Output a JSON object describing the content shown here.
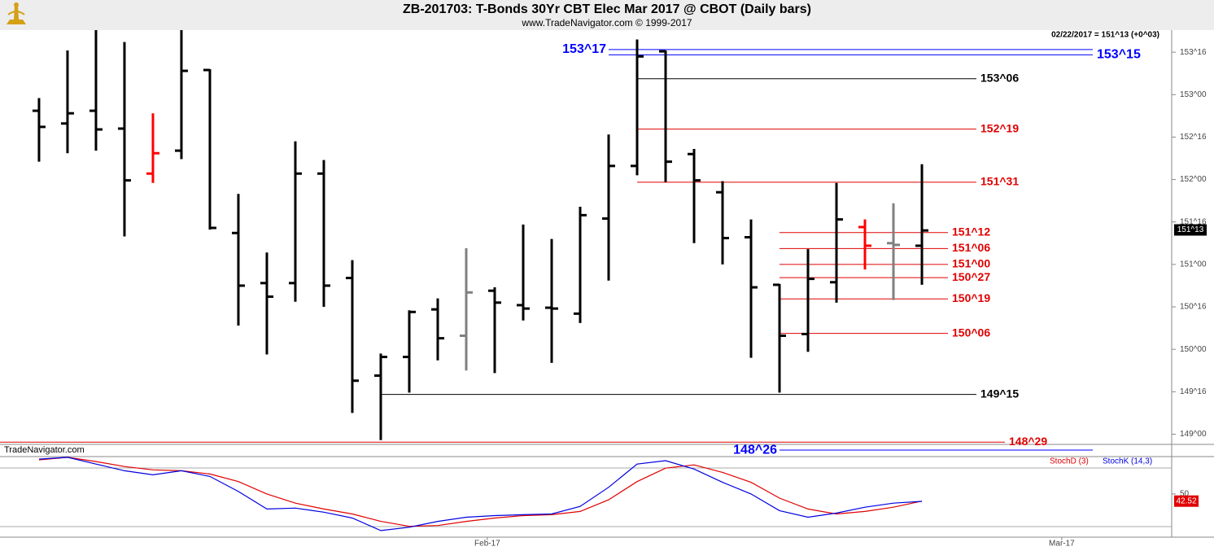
{
  "chart_data": [
    {
      "type": "ohlc",
      "title": "ZB-201703:  T-Bonds 30Yr CBT Elec Mar 2017 @ CBOT  (Daily bars)",
      "subtitle": "www.TradeNavigator.com © 1999-2017",
      "info": "02/22/2017 = 151^13 (+0^03)",
      "watermark": "TradeNavigator.com",
      "categories": [
        null,
        null,
        null,
        null,
        null,
        null,
        null,
        null,
        null,
        null,
        null,
        null,
        null,
        null,
        null,
        null,
        null,
        null,
        null,
        null,
        null,
        null,
        null,
        null,
        null,
        null,
        null,
        null,
        null,
        null,
        null,
        null
      ],
      "xlim": [
        -1.37,
        39.77
      ],
      "ylim": [
        148.88,
        153.76
      ],
      "yticks": [
        {
          "value": 153.5,
          "label": "153^16"
        },
        {
          "value": 153,
          "label": "153^00"
        },
        {
          "value": 152.5,
          "label": "152^16"
        },
        {
          "value": 152,
          "label": "152^00"
        },
        {
          "value": 151.5,
          "label": "151^16"
        },
        {
          "value": 151,
          "label": "151^00"
        },
        {
          "value": 150.5,
          "label": "150^16"
        },
        {
          "value": 150,
          "label": "150^00"
        },
        {
          "value": 149.5,
          "label": "149^16"
        },
        {
          "value": 149,
          "label": "149^00"
        }
      ],
      "open": [
        152.81,
        152.66,
        152.81,
        152.6,
        152.07,
        152.34,
        153.29,
        151.37,
        150.78,
        150.78,
        152.07,
        150.84,
        149.69,
        149.91,
        150.47,
        150.16,
        150.69,
        150.52,
        150.49,
        150.42,
        151.54,
        152.16,
        153.51,
        152.3,
        151.85,
        151.32,
        150.76,
        150.18,
        150.79,
        151.44,
        151.25,
        151.22
      ],
      "high": [
        152.96,
        153.52,
        153.76,
        153.62,
        152.78,
        153.76,
        153.3,
        151.83,
        151.14,
        152.45,
        152.23,
        151.05,
        149.95,
        150.46,
        150.6,
        151.19,
        150.73,
        151.47,
        151.3,
        151.68,
        152.53,
        153.65,
        153.52,
        152.36,
        151.98,
        151.53,
        150.77,
        151.18,
        151.96,
        151.53,
        151.72,
        152.18
      ],
      "low": [
        152.21,
        152.31,
        152.34,
        151.33,
        151.96,
        152.24,
        151.41,
        150.28,
        149.94,
        150.56,
        150.5,
        149.25,
        148.93,
        149.49,
        149.87,
        149.75,
        149.72,
        150.34,
        149.84,
        150.31,
        150.81,
        152.05,
        151.97,
        151.25,
        151.0,
        149.9,
        149.49,
        149.97,
        150.55,
        150.94,
        150.58,
        150.76
      ],
      "close": [
        152.62,
        152.78,
        152.59,
        151.99,
        152.31,
        153.28,
        151.43,
        150.75,
        150.62,
        152.07,
        150.75,
        149.63,
        149.91,
        150.44,
        150.13,
        150.67,
        150.55,
        150.48,
        150.48,
        151.58,
        152.16,
        153.45,
        152.21,
        151.99,
        151.31,
        150.73,
        150.16,
        150.83,
        151.53,
        151.22,
        151.23,
        151.4
      ],
      "colors": [
        "#000000",
        "#000000",
        "#000000",
        "#000000",
        "#ff0000",
        "#000000",
        "#000000",
        "#000000",
        "#000000",
        "#000000",
        "#000000",
        "#000000",
        "#000000",
        "#000000",
        "#000000",
        "#808080",
        "#000000",
        "#000000",
        "#000000",
        "#000000",
        "#000000",
        "#000000",
        "#000000",
        "#000000",
        "#000000",
        "#000000",
        "#000000",
        "#000000",
        "#000000",
        "#ff0000",
        "#808080",
        "#000000"
      ],
      "levels": [
        {
          "label": "153^17",
          "value": 153.53125,
          "color": "#0000ff"
        },
        {
          "label": "153^15",
          "value": 153.46875,
          "color": "#0000ff"
        },
        {
          "label": "153^06",
          "value": 153.1875,
          "color": "#000000"
        },
        {
          "label": "152^19",
          "value": 152.59375,
          "color": "#e00000"
        },
        {
          "label": "151^31",
          "value": 151.96875,
          "color": "#e00000"
        },
        {
          "label": "151^12",
          "value": 151.375,
          "color": "#e00000"
        },
        {
          "label": "151^06",
          "value": 151.1875,
          "color": "#e00000"
        },
        {
          "label": "151^00",
          "value": 151.0,
          "color": "#e00000"
        },
        {
          "label": "150^27",
          "value": 150.84375,
          "color": "#e00000"
        },
        {
          "label": "150^19",
          "value": 150.59375,
          "color": "#e00000"
        },
        {
          "label": "150^06",
          "value": 150.1875,
          "color": "#e00000"
        },
        {
          "label": "149^15",
          "value": 149.46875,
          "color": "#000000"
        },
        {
          "label": "148^29",
          "value": 148.90625,
          "color": "#e00000"
        },
        {
          "label": "148^26",
          "value": 148.8125,
          "color": "#0000ff"
        }
      ],
      "last_price": {
        "value": 151.40625,
        "label": "151^13"
      }
    },
    {
      "type": "line",
      "categories": [
        null,
        null,
        null,
        null,
        null,
        null,
        null,
        null,
        null,
        null,
        null,
        null,
        null,
        null,
        null,
        null,
        null,
        null,
        null,
        null,
        null,
        null,
        null,
        null,
        null,
        null,
        null,
        null,
        null,
        null,
        null,
        null
      ],
      "xlim": [
        -1.37,
        39.77
      ],
      "ylim": [
        4.8,
        89.1
      ],
      "yticks": [
        50
      ],
      "xticks": [
        {
          "value": 15.74,
          "label": "Feb-17"
        },
        {
          "value": 35.91,
          "label": "Mar-17"
        }
      ],
      "series": [
        {
          "name": "StochD (3)",
          "color": "#e00000",
          "values": [
            85.7,
            88.3,
            83.9,
            78.7,
            75.2,
            74.3,
            70.9,
            63.0,
            50.0,
            40.4,
            34.3,
            29.1,
            21.3,
            16.1,
            17.0,
            21.3,
            24.8,
            27.4,
            28.3,
            31.7,
            43.9,
            63.0,
            77.0,
            80.4,
            72.6,
            62.2,
            45.7,
            34.3,
            29.1,
            31.7,
            36.1,
            42.52
          ]
        },
        {
          "name": "StochK (14,3)",
          "color": "#0000e0",
          "values": [
            86.5,
            88.3,
            81.3,
            74.3,
            70.0,
            74.3,
            68.3,
            52.6,
            34.3,
            35.2,
            30.9,
            24.8,
            11.7,
            15.2,
            21.3,
            25.7,
            27.4,
            28.3,
            29.1,
            37.0,
            57.0,
            81.3,
            84.8,
            76.1,
            62.2,
            50.0,
            32.6,
            25.7,
            30.0,
            36.1,
            40.4,
            42.3
          ]
        }
      ],
      "last_value": 42.52
    }
  ]
}
